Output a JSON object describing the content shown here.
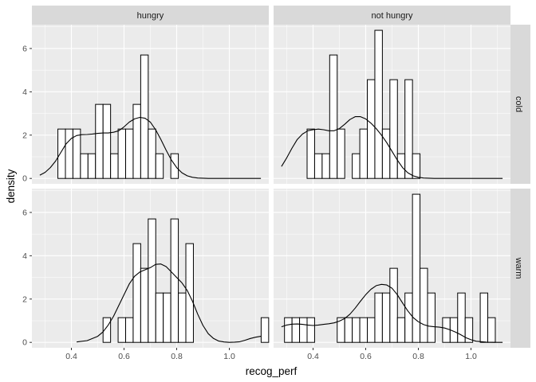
{
  "chart_data": {
    "type": "histogram",
    "xlabel": "recog_perf",
    "ylabel": "density",
    "xlim": [
      0.25,
      1.15
    ],
    "ylim": [
      -0.25,
      7.1
    ],
    "x_ticks": [
      0.4,
      0.6,
      0.8,
      1.0
    ],
    "x_tick_labels": [
      "0.4",
      "0.6",
      "0.8",
      "1.0"
    ],
    "y_ticks": [
      0,
      2,
      4,
      6
    ],
    "y_tick_labels": [
      "0",
      "2",
      "4",
      "6"
    ],
    "column_facets": [
      "hungry",
      "not hungry"
    ],
    "row_facets": [
      "cold",
      "warm"
    ],
    "bin_width": 0.0286,
    "bin_start": 0.2629,
    "style": {
      "panel_background": "#ebebeb",
      "grid_color": "#ffffff",
      "strip_background": "#d9d9d9",
      "bar_fill": "#ffffff",
      "bar_stroke": "#000000",
      "density_color": "#000000"
    },
    "panels": [
      {
        "row": "cold",
        "col": "hungry",
        "histogram": [
          0,
          0,
          0,
          2.28,
          2.28,
          2.28,
          1.14,
          1.14,
          3.42,
          3.42,
          1.14,
          2.28,
          2.28,
          3.42,
          5.7,
          2.28,
          1.14,
          0,
          1.14,
          0,
          0,
          0,
          0,
          0,
          0,
          0,
          0,
          0,
          0,
          0,
          0
        ],
        "density": {
          "x": [
            0.28,
            0.3,
            0.32,
            0.34,
            0.36,
            0.38,
            0.4,
            0.42,
            0.44,
            0.46,
            0.48,
            0.5,
            0.52,
            0.54,
            0.56,
            0.58,
            0.6,
            0.62,
            0.64,
            0.66,
            0.68,
            0.7,
            0.72,
            0.74,
            0.76,
            0.78,
            0.8,
            0.82,
            0.84,
            0.86,
            0.88,
            0.9,
            0.92,
            0.94,
            0.96,
            1.0,
            1.04,
            1.08,
            1.12
          ],
          "y": [
            0.15,
            0.28,
            0.5,
            0.8,
            1.2,
            1.6,
            1.85,
            1.98,
            2.02,
            2.03,
            2.05,
            2.08,
            2.1,
            2.1,
            2.13,
            2.2,
            2.38,
            2.6,
            2.75,
            2.82,
            2.78,
            2.6,
            2.25,
            1.8,
            1.3,
            0.85,
            0.5,
            0.26,
            0.12,
            0.05,
            0.02,
            0.01,
            0,
            0,
            0,
            0,
            0,
            0,
            0
          ]
        }
      },
      {
        "row": "cold",
        "col": "not hungry",
        "histogram": [
          0,
          0,
          0,
          0,
          2.28,
          1.14,
          1.14,
          5.7,
          2.28,
          0,
          1.14,
          2.28,
          4.56,
          6.84,
          2.28,
          4.56,
          1.14,
          4.56,
          1.14,
          0,
          0,
          0,
          0,
          0,
          0,
          0,
          0,
          0,
          0,
          0,
          0
        ],
        "density": {
          "x": [
            0.28,
            0.3,
            0.32,
            0.34,
            0.36,
            0.38,
            0.4,
            0.42,
            0.44,
            0.46,
            0.48,
            0.5,
            0.52,
            0.54,
            0.56,
            0.58,
            0.6,
            0.62,
            0.64,
            0.66,
            0.68,
            0.7,
            0.72,
            0.74,
            0.76,
            0.78,
            0.8,
            0.82,
            0.84,
            0.86,
            0.88,
            0.9,
            0.94,
            0.98,
            1.02,
            1.06,
            1.12
          ],
          "y": [
            0.55,
            0.95,
            1.4,
            1.8,
            2.05,
            2.2,
            2.25,
            2.28,
            2.25,
            2.2,
            2.2,
            2.3,
            2.5,
            2.72,
            2.85,
            2.85,
            2.75,
            2.55,
            2.3,
            2.0,
            1.65,
            1.25,
            0.85,
            0.5,
            0.26,
            0.12,
            0.05,
            0.02,
            0.01,
            0,
            0,
            0,
            0,
            0,
            0,
            0,
            0
          ]
        }
      },
      {
        "row": "warm",
        "col": "hungry",
        "histogram": [
          0,
          0,
          0,
          0,
          0,
          0,
          0,
          0,
          0,
          1.14,
          0,
          1.14,
          1.14,
          4.56,
          3.42,
          5.7,
          2.28,
          2.28,
          5.7,
          2.28,
          4.56,
          0,
          0,
          0,
          0,
          0,
          0,
          0,
          0,
          0,
          1.14
        ],
        "density": {
          "x": [
            0.42,
            0.46,
            0.5,
            0.52,
            0.54,
            0.56,
            0.58,
            0.6,
            0.62,
            0.64,
            0.66,
            0.68,
            0.7,
            0.72,
            0.74,
            0.76,
            0.78,
            0.8,
            0.82,
            0.84,
            0.86,
            0.88,
            0.9,
            0.92,
            0.94,
            0.96,
            0.98,
            1.0,
            1.02,
            1.04,
            1.06,
            1.08,
            1.1,
            1.12
          ],
          "y": [
            0.02,
            0.08,
            0.28,
            0.48,
            0.8,
            1.2,
            1.7,
            2.2,
            2.7,
            3.05,
            3.25,
            3.35,
            3.45,
            3.6,
            3.62,
            3.5,
            3.25,
            3.0,
            2.75,
            2.4,
            1.9,
            1.3,
            0.78,
            0.4,
            0.18,
            0.06,
            0.02,
            0.0,
            0.01,
            0.03,
            0.1,
            0.18,
            0.24,
            0.28
          ]
        }
      },
      {
        "row": "warm",
        "col": "not hungry",
        "histogram": [
          0,
          1.14,
          1.14,
          1.14,
          1.14,
          0,
          0,
          0,
          1.14,
          1.14,
          1.14,
          1.14,
          1.14,
          2.28,
          2.28,
          3.42,
          1.14,
          2.28,
          6.84,
          3.42,
          2.28,
          0,
          1.14,
          1.14,
          2.28,
          1.14,
          0,
          2.28,
          1.14,
          0,
          0
        ],
        "density": {
          "x": [
            0.28,
            0.3,
            0.32,
            0.34,
            0.36,
            0.38,
            0.4,
            0.42,
            0.44,
            0.46,
            0.48,
            0.5,
            0.52,
            0.54,
            0.56,
            0.58,
            0.6,
            0.62,
            0.64,
            0.66,
            0.68,
            0.7,
            0.72,
            0.74,
            0.76,
            0.78,
            0.8,
            0.82,
            0.84,
            0.86,
            0.88,
            0.9,
            0.92,
            0.94,
            0.96,
            0.98,
            1.0,
            1.02,
            1.06,
            1.1,
            1.12
          ],
          "y": [
            0.72,
            0.8,
            0.84,
            0.85,
            0.83,
            0.8,
            0.78,
            0.8,
            0.83,
            0.86,
            0.9,
            0.98,
            1.1,
            1.3,
            1.58,
            1.9,
            2.2,
            2.45,
            2.62,
            2.68,
            2.65,
            2.5,
            2.2,
            1.82,
            1.45,
            1.15,
            0.95,
            0.82,
            0.75,
            0.72,
            0.7,
            0.66,
            0.58,
            0.48,
            0.36,
            0.22,
            0.12,
            0.05,
            0.01,
            0,
            0
          ]
        }
      }
    ]
  }
}
